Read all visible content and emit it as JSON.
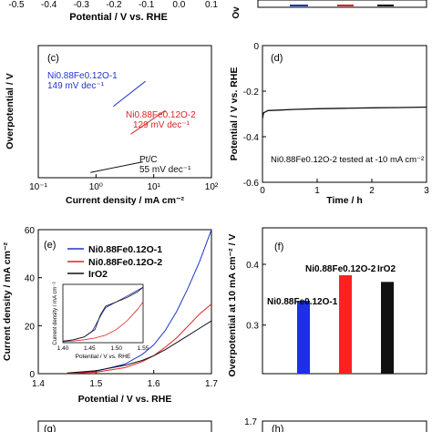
{
  "top_strip": {
    "ticks": [
      "-0.5",
      "-0.4",
      "-0.3",
      "-0.2",
      "-0.1",
      "0.0",
      "0.1"
    ],
    "xlabel": "Potential / V vs. RHE",
    "right_label_fragment": "Ov"
  },
  "chart_data": [
    {
      "id": "c",
      "panel_label": "(c)",
      "type": "line",
      "xscale": "log",
      "xlim": [
        0.1,
        100
      ],
      "ylim": [
        0,
        0.5
      ],
      "xticks": [
        "10⁻¹",
        "10⁰",
        "10¹",
        "10²"
      ],
      "xlabel": "Current density / mA cm⁻²",
      "ylabel": "Overpotential / V",
      "grid": false,
      "series": [
        {
          "label_lines": [
            "Ni0.88Fe0.12O-1",
            "149 mV dec⁻¹"
          ],
          "color": "#2233cc",
          "x": [
            2.0,
            7.2
          ],
          "y": [
            0.27,
            0.365
          ]
        },
        {
          "label_lines": [
            "Ni0.88Fe0.12O-2",
            "129 mV dec⁻¹"
          ],
          "color": "#dd2222",
          "x": [
            4.0,
            16.0
          ],
          "y": [
            0.165,
            0.255
          ]
        },
        {
          "label_lines": [
            "Pt/C",
            "55 mV dec⁻¹"
          ],
          "color": "#111111",
          "x": [
            0.8,
            6.5
          ],
          "y": [
            0.02,
            0.06
          ]
        }
      ]
    },
    {
      "id": "d",
      "panel_label": "(d)",
      "type": "line",
      "xlim": [
        0,
        3
      ],
      "ylim": [
        -0.6,
        0
      ],
      "xticks": [
        "0",
        "1",
        "2",
        "3"
      ],
      "yticks": [
        "0",
        "-0.2",
        "-0.4",
        "-0.6"
      ],
      "xlabel": "Time / h",
      "ylabel": "Potential / V vs. RHE",
      "annotation": "Ni0.88Fe0.12O-2 tested at -10 mA cm⁻²",
      "series": [
        {
          "color": "#111111",
          "x": [
            0,
            0.02,
            0.1,
            0.3,
            0.6,
            1.0,
            1.5,
            2.0,
            2.5,
            3.0
          ],
          "y": [
            -0.32,
            -0.295,
            -0.285,
            -0.283,
            -0.28,
            -0.277,
            -0.275,
            -0.273,
            -0.272,
            -0.27
          ]
        }
      ]
    },
    {
      "id": "e",
      "panel_label": "(e)",
      "type": "line",
      "xlim": [
        1.4,
        1.7
      ],
      "ylim": [
        0,
        60
      ],
      "xticks": [
        "1.4",
        "1.5",
        "1.6",
        "1.7"
      ],
      "yticks": [
        "0",
        "20",
        "40",
        "60"
      ],
      "xlabel": "Potential / V vs. RHE",
      "ylabel": "Current density / mA cm⁻²",
      "legend_position": "top-left",
      "series": [
        {
          "name": "Ni0.88Fe0.12O-1",
          "color": "#2233cc",
          "x": [
            1.45,
            1.5,
            1.55,
            1.58,
            1.6,
            1.62,
            1.64,
            1.66,
            1.68,
            1.7
          ],
          "y": [
            0.2,
            1.0,
            4.0,
            8.0,
            12.0,
            18.0,
            26.0,
            36.0,
            47.0,
            60.0
          ]
        },
        {
          "name": "Ni0.88Fe0.12O-2",
          "color": "#dd2222",
          "x": [
            1.45,
            1.5,
            1.55,
            1.58,
            1.6,
            1.62,
            1.64,
            1.66,
            1.68,
            1.7
          ],
          "y": [
            0.1,
            0.6,
            2.5,
            5.0,
            7.5,
            11.0,
            15.0,
            20.0,
            25.0,
            29.0
          ]
        },
        {
          "name": "IrO2",
          "color": "#111111",
          "x": [
            1.45,
            1.5,
            1.55,
            1.58,
            1.6,
            1.62,
            1.64,
            1.66,
            1.68,
            1.7
          ],
          "y": [
            0.3,
            1.2,
            3.5,
            5.5,
            7.5,
            10.0,
            13.0,
            16.0,
            19.0,
            22.0
          ]
        }
      ],
      "inset": {
        "xlim": [
          1.4,
          1.55
        ],
        "ylim": [
          0,
          20
        ],
        "xticks": [
          "1.40",
          "1.45",
          "1.50",
          "1.55"
        ],
        "xlabel": "Potential / V vs. RHE",
        "ylabel": "Current density / mA cm⁻²",
        "series": [
          {
            "color": "#2233cc",
            "x": [
              1.4,
              1.42,
              1.44,
              1.455,
              1.47,
              1.48,
              1.49,
              1.5,
              1.52,
              1.54,
              1.55
            ],
            "y": [
              0.5,
              1.0,
              2.0,
              4.0,
              9.0,
              12.0,
              13.0,
              14.0,
              16.0,
              18.0,
              19.0
            ]
          },
          {
            "color": "#dd2222",
            "x": [
              1.4,
              1.42,
              1.44,
              1.46,
              1.48,
              1.5,
              1.52,
              1.54,
              1.55
            ],
            "y": [
              0.3,
              0.6,
              1.0,
              1.6,
              2.6,
              4.5,
              7.5,
              11.5,
              14.0
            ]
          },
          {
            "color": "#111111",
            "x": [
              1.4,
              1.42,
              1.44,
              1.46,
              1.47,
              1.48,
              1.5,
              1.52,
              1.54,
              1.55
            ],
            "y": [
              0.5,
              1.0,
              2.0,
              4.5,
              9.5,
              12.5,
              14.0,
              15.5,
              17.5,
              19.0
            ]
          }
        ]
      }
    },
    {
      "id": "f",
      "panel_label": "(f)",
      "type": "bar",
      "ylim": [
        0.22,
        0.46
      ],
      "yticks": [
        "0.3",
        "0.4"
      ],
      "ylabel": "Overpotential at 10 mA cm⁻² / V",
      "categories": [
        "Ni0.88Fe0.12O-1",
        "Ni0.88Fe0.12O-2",
        "IrO2"
      ],
      "values": [
        0.34,
        0.382,
        0.371
      ],
      "colors": [
        "#1f2ee8",
        "#ff2020",
        "#111111"
      ]
    }
  ],
  "bottom_strip": {
    "left_label": "(g)",
    "right_label": "(h)",
    "right_tick": "1.7"
  }
}
